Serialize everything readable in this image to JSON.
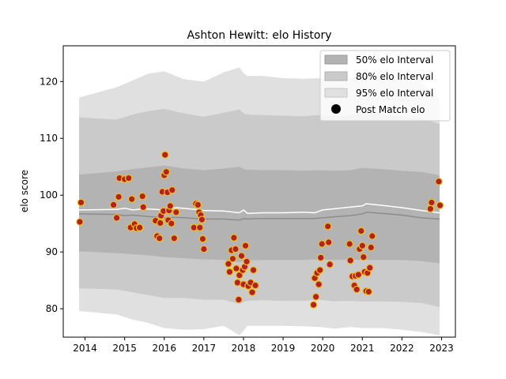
{
  "chart_data": {
    "type": "area",
    "title": "Ashton Hewitt: elo History",
    "xlabel": "",
    "ylabel": "elo score",
    "xlim": [
      2013.45,
      2023.35
    ],
    "ylim": [
      75.0,
      126.3
    ],
    "x_ticks": [
      "2014",
      "2015",
      "2016",
      "2017",
      "2018",
      "2019",
      "2020",
      "2021",
      "2022",
      "2023"
    ],
    "y_ticks": [
      "80",
      "90",
      "100",
      "110",
      "120"
    ],
    "grid": false,
    "legend_position": "top-right",
    "legend": [
      {
        "label": "50% elo Interval",
        "color": "#b3b3b3",
        "kind": "band"
      },
      {
        "label": "80% elo Interval",
        "color": "#cacaca",
        "kind": "band"
      },
      {
        "label": "95% elo Interval",
        "color": "#e0e0e0",
        "kind": "band"
      },
      {
        "label": "Post Match elo",
        "color": "#000000",
        "kind": "point"
      }
    ],
    "colors": {
      "band50": "#b3b3b3",
      "band80": "#cacaca",
      "band95": "#e0e0e0",
      "median_line": "#8c8c8c",
      "mean_line": "#ffffff",
      "point_fill": "#b22222",
      "point_edge": "#f0c020"
    },
    "bands": {
      "x": [
        2013.85,
        2014.8,
        2015.2,
        2015.6,
        2016.0,
        2016.5,
        2017.0,
        2017.5,
        2017.9,
        2018.0,
        2018.1,
        2018.5,
        2019.0,
        2019.5,
        2019.9,
        2020.3,
        2020.7,
        2021.0,
        2021.5,
        2022.0,
        2022.5,
        2022.95
      ],
      "p95_hi": [
        117.2,
        119.0,
        120.2,
        121.4,
        121.8,
        120.4,
        120.0,
        121.6,
        122.5,
        121.5,
        121.0,
        121.0,
        120.6,
        120.5,
        120.6,
        120.4,
        120.6,
        121.3,
        120.8,
        120.4,
        119.8,
        117.0
      ],
      "p80_hi": [
        113.7,
        113.3,
        114.2,
        114.8,
        115.2,
        114.4,
        113.8,
        114.5,
        115.1,
        114.4,
        114.2,
        114.1,
        114.0,
        113.9,
        114.1,
        113.9,
        114.1,
        114.6,
        114.3,
        113.9,
        113.6,
        112.5
      ],
      "p50_hi": [
        103.6,
        104.2,
        104.6,
        104.9,
        105.2,
        104.7,
        104.4,
        104.7,
        105.0,
        104.6,
        104.5,
        104.4,
        104.4,
        104.3,
        104.4,
        104.3,
        104.4,
        104.8,
        104.6,
        104.3,
        104.1,
        103.5
      ],
      "p50_lo": [
        90.1,
        89.8,
        89.6,
        89.4,
        89.1,
        88.9,
        88.7,
        88.6,
        88.2,
        88.4,
        88.5,
        88.6,
        88.6,
        88.6,
        88.7,
        88.6,
        88.7,
        88.6,
        88.6,
        88.6,
        88.4,
        88.0
      ],
      "p80_lo": [
        83.6,
        83.4,
        82.9,
        82.4,
        81.9,
        81.9,
        81.6,
        81.6,
        80.8,
        81.2,
        81.4,
        81.5,
        81.4,
        81.4,
        81.6,
        81.3,
        81.4,
        81.3,
        81.3,
        81.2,
        81.0,
        80.3
      ],
      "p95_lo": [
        79.6,
        79.0,
        78.1,
        77.5,
        76.6,
        76.3,
        76.4,
        77.0,
        75.3,
        76.1,
        77.0,
        77.0,
        77.0,
        76.9,
        76.8,
        76.5,
        76.8,
        76.6,
        76.6,
        76.3,
        75.9,
        75.3
      ]
    },
    "median_line": {
      "x": [
        2013.85,
        2014.8,
        2015.0,
        2015.2,
        2015.5,
        2016.0,
        2016.3,
        2016.8,
        2017.0,
        2017.5,
        2017.9,
        2018.0,
        2018.1,
        2018.5,
        2019.0,
        2019.5,
        2019.8,
        2020.0,
        2020.3,
        2020.7,
        2021.0,
        2021.1,
        2021.5,
        2022.0,
        2022.5,
        2022.95
      ],
      "y": [
        96.7,
        96.6,
        96.4,
        96.5,
        96.3,
        96.0,
        96.1,
        95.9,
        95.8,
        95.8,
        95.6,
        95.9,
        95.8,
        95.9,
        95.9,
        95.9,
        95.9,
        96.0,
        96.2,
        96.4,
        96.7,
        97.0,
        96.8,
        96.5,
        96.0,
        95.8
      ]
    },
    "mean_line": {
      "x": [
        2013.85,
        2014.8,
        2015.0,
        2015.2,
        2015.5,
        2016.0,
        2016.3,
        2016.8,
        2017.0,
        2017.5,
        2017.9,
        2018.0,
        2018.1,
        2018.5,
        2019.0,
        2019.5,
        2019.8,
        2020.0,
        2020.3,
        2020.7,
        2021.0,
        2021.1,
        2021.5,
        2022.0,
        2022.5,
        2022.95
      ],
      "y": [
        97.4,
        97.5,
        97.7,
        97.4,
        97.6,
        97.4,
        97.8,
        97.5,
        97.3,
        97.2,
        96.9,
        97.4,
        96.8,
        96.9,
        96.9,
        97.0,
        96.9,
        97.4,
        97.6,
        97.9,
        98.1,
        98.5,
        98.2,
        97.8,
        97.3,
        96.9
      ]
    },
    "points": [
      {
        "x": 2013.87,
        "y": 95.3
      },
      {
        "x": 2013.9,
        "y": 98.7
      },
      {
        "x": 2014.72,
        "y": 98.3
      },
      {
        "x": 2014.8,
        "y": 96.0
      },
      {
        "x": 2014.85,
        "y": 99.7
      },
      {
        "x": 2014.87,
        "y": 103.0
      },
      {
        "x": 2015.0,
        "y": 102.8
      },
      {
        "x": 2015.1,
        "y": 103.0
      },
      {
        "x": 2015.15,
        "y": 94.3
      },
      {
        "x": 2015.18,
        "y": 99.3
      },
      {
        "x": 2015.25,
        "y": 94.9
      },
      {
        "x": 2015.3,
        "y": 94.2
      },
      {
        "x": 2015.38,
        "y": 94.3
      },
      {
        "x": 2015.45,
        "y": 99.8
      },
      {
        "x": 2015.47,
        "y": 97.9
      },
      {
        "x": 2015.78,
        "y": 95.5
      },
      {
        "x": 2015.82,
        "y": 92.8
      },
      {
        "x": 2015.88,
        "y": 92.4
      },
      {
        "x": 2015.9,
        "y": 95.1
      },
      {
        "x": 2015.92,
        "y": 96.4
      },
      {
        "x": 2015.95,
        "y": 100.6
      },
      {
        "x": 2015.98,
        "y": 97.2
      },
      {
        "x": 2016.0,
        "y": 103.5
      },
      {
        "x": 2016.02,
        "y": 107.1
      },
      {
        "x": 2016.05,
        "y": 104.1
      },
      {
        "x": 2016.08,
        "y": 100.5
      },
      {
        "x": 2016.1,
        "y": 95.6
      },
      {
        "x": 2016.12,
        "y": 97.3
      },
      {
        "x": 2016.15,
        "y": 98.1
      },
      {
        "x": 2016.18,
        "y": 95.0
      },
      {
        "x": 2016.2,
        "y": 100.9
      },
      {
        "x": 2016.25,
        "y": 92.4
      },
      {
        "x": 2016.3,
        "y": 97.0
      },
      {
        "x": 2016.75,
        "y": 94.3
      },
      {
        "x": 2016.8,
        "y": 98.5
      },
      {
        "x": 2016.85,
        "y": 98.3
      },
      {
        "x": 2016.88,
        "y": 97.0
      },
      {
        "x": 2016.9,
        "y": 94.3
      },
      {
        "x": 2016.92,
        "y": 96.5
      },
      {
        "x": 2016.95,
        "y": 95.7
      },
      {
        "x": 2016.97,
        "y": 92.3
      },
      {
        "x": 2017.0,
        "y": 90.5
      },
      {
        "x": 2017.62,
        "y": 87.9
      },
      {
        "x": 2017.65,
        "y": 86.5
      },
      {
        "x": 2017.7,
        "y": 90.3
      },
      {
        "x": 2017.73,
        "y": 88.8
      },
      {
        "x": 2017.76,
        "y": 92.5
      },
      {
        "x": 2017.8,
        "y": 90.5
      },
      {
        "x": 2017.82,
        "y": 87.1
      },
      {
        "x": 2017.85,
        "y": 84.6
      },
      {
        "x": 2017.88,
        "y": 81.6
      },
      {
        "x": 2017.9,
        "y": 85.9
      },
      {
        "x": 2017.95,
        "y": 89.3
      },
      {
        "x": 2017.98,
        "y": 86.8
      },
      {
        "x": 2018.0,
        "y": 84.3
      },
      {
        "x": 2018.03,
        "y": 87.4
      },
      {
        "x": 2018.05,
        "y": 91.1
      },
      {
        "x": 2018.08,
        "y": 88.3
      },
      {
        "x": 2018.12,
        "y": 84.0
      },
      {
        "x": 2018.18,
        "y": 84.6
      },
      {
        "x": 2018.22,
        "y": 82.9
      },
      {
        "x": 2018.25,
        "y": 86.8
      },
      {
        "x": 2018.3,
        "y": 84.1
      },
      {
        "x": 2019.77,
        "y": 80.7
      },
      {
        "x": 2019.8,
        "y": 85.4
      },
      {
        "x": 2019.83,
        "y": 82.1
      },
      {
        "x": 2019.86,
        "y": 86.3
      },
      {
        "x": 2019.9,
        "y": 84.3
      },
      {
        "x": 2019.93,
        "y": 86.8
      },
      {
        "x": 2019.95,
        "y": 89.0
      },
      {
        "x": 2019.98,
        "y": 91.4
      },
      {
        "x": 2020.13,
        "y": 94.5
      },
      {
        "x": 2020.15,
        "y": 91.7
      },
      {
        "x": 2020.18,
        "y": 87.8
      },
      {
        "x": 2020.68,
        "y": 91.4
      },
      {
        "x": 2020.7,
        "y": 88.5
      },
      {
        "x": 2020.75,
        "y": 85.7
      },
      {
        "x": 2020.8,
        "y": 84.1
      },
      {
        "x": 2020.83,
        "y": 85.8
      },
      {
        "x": 2020.86,
        "y": 83.4
      },
      {
        "x": 2020.9,
        "y": 86.0
      },
      {
        "x": 2020.93,
        "y": 90.5
      },
      {
        "x": 2020.97,
        "y": 93.7
      },
      {
        "x": 2021.0,
        "y": 91.1
      },
      {
        "x": 2021.03,
        "y": 89.1
      },
      {
        "x": 2021.06,
        "y": 86.5
      },
      {
        "x": 2021.1,
        "y": 83.1
      },
      {
        "x": 2021.13,
        "y": 86.3
      },
      {
        "x": 2021.16,
        "y": 83.0
      },
      {
        "x": 2021.19,
        "y": 87.2
      },
      {
        "x": 2021.22,
        "y": 90.8
      },
      {
        "x": 2021.25,
        "y": 92.8
      },
      {
        "x": 2022.72,
        "y": 97.6
      },
      {
        "x": 2022.75,
        "y": 98.7
      },
      {
        "x": 2022.93,
        "y": 102.4
      },
      {
        "x": 2022.96,
        "y": 98.2
      }
    ]
  }
}
